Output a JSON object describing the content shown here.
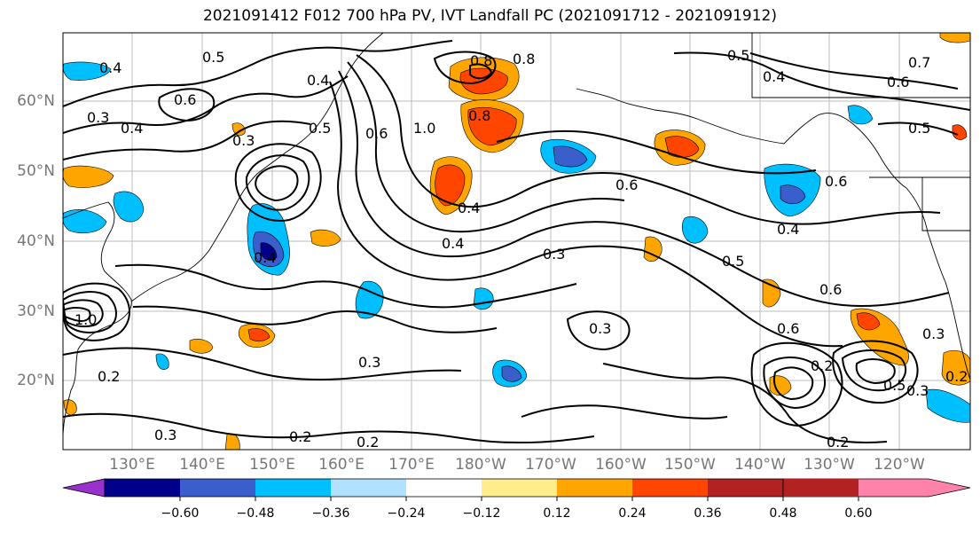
{
  "title": "2021091412 F012 700 hPa PV, IVT Landfall PC (2021091712 - 2021091912)",
  "map": {
    "lat_labels": [
      "60°N",
      "50°N",
      "40°N",
      "30°N",
      "20°N"
    ],
    "lon_labels": [
      "130°E",
      "140°E",
      "150°E",
      "160°E",
      "170°E",
      "180°W",
      "170°W",
      "160°W",
      "150°W",
      "140°W",
      "130°W",
      "120°W"
    ],
    "contour_labels": [
      "0.4",
      "0.5",
      "0.6",
      "0.3",
      "0.4",
      "0.3",
      "0.4",
      "0.5",
      "0.6",
      "0.8",
      "1.0",
      "0.8",
      "0.5",
      "0.4",
      "0.6",
      "0.7",
      "0.6",
      "0.5",
      "0.6",
      "0.4",
      "0.5",
      "0.6",
      "0.4",
      "0.3",
      "0.4",
      "0.3",
      "0.6",
      "0.2",
      "0.5",
      "0.3",
      "0.2",
      "0.3",
      "0.2",
      "0.3",
      "0.2",
      "0.2",
      "1.0",
      "0.2",
      "0.3",
      "0.4",
      "0.8"
    ],
    "contour_color": "#000000"
  },
  "colorbar": {
    "colors": [
      "#9932cc",
      "#00008b",
      "#3a5fcd",
      "#00bfff",
      "#b0e2ff",
      "#ffffff",
      "#ffec8b",
      "#ffa500",
      "#ff4500",
      "#b22222",
      "#ff82ab"
    ],
    "tick_labels": [
      "−0.60",
      "−0.48",
      "−0.36",
      "−0.24",
      "−0.12",
      "0.12",
      "0.24",
      "0.36",
      "0.48",
      "0.60"
    ]
  }
}
